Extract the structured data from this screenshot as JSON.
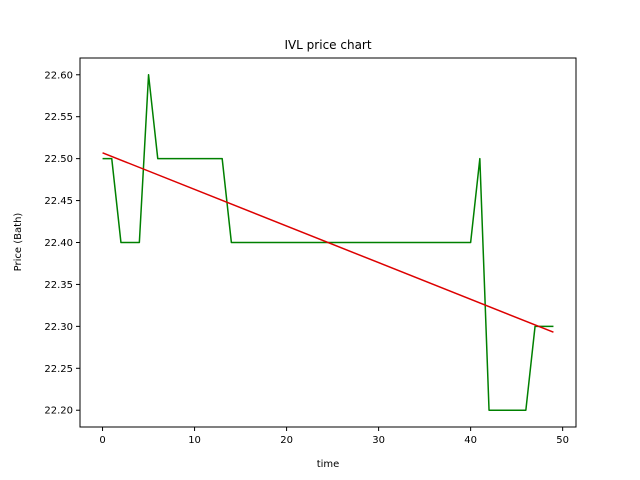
{
  "chart_data": {
    "type": "line",
    "title": "IVL price chart",
    "xlabel": "time",
    "ylabel": "Price (Bath)",
    "xlim": [
      -2.45,
      51.45
    ],
    "ylim": [
      22.18,
      22.62
    ],
    "xticks": [
      0,
      10,
      20,
      30,
      40,
      50
    ],
    "yticks": [
      22.2,
      22.25,
      22.3,
      22.35,
      22.4,
      22.45,
      22.5,
      22.55,
      22.6
    ],
    "grid": false,
    "series": [
      {
        "color": "#008000",
        "x": [
          0,
          1,
          2,
          3,
          4,
          5,
          6,
          7,
          8,
          9,
          10,
          11,
          12,
          13,
          14,
          15,
          16,
          17,
          18,
          19,
          20,
          21,
          22,
          23,
          24,
          25,
          26,
          27,
          28,
          29,
          30,
          31,
          32,
          33,
          34,
          35,
          36,
          37,
          38,
          39,
          40,
          41,
          42,
          43,
          44,
          45,
          46,
          47,
          48,
          49
        ],
        "values": [
          22.5,
          22.5,
          22.4,
          22.4,
          22.4,
          22.6,
          22.5,
          22.5,
          22.5,
          22.5,
          22.5,
          22.5,
          22.5,
          22.5,
          22.4,
          22.4,
          22.4,
          22.4,
          22.4,
          22.4,
          22.4,
          22.4,
          22.4,
          22.4,
          22.4,
          22.4,
          22.4,
          22.4,
          22.4,
          22.4,
          22.4,
          22.4,
          22.4,
          22.4,
          22.4,
          22.4,
          22.4,
          22.4,
          22.4,
          22.4,
          22.4,
          22.5,
          22.2,
          22.2,
          22.2,
          22.2,
          22.2,
          22.3,
          22.3,
          22.3
        ]
      },
      {
        "color": "#dd0000",
        "type": "trendline",
        "x": [
          0,
          49
        ],
        "values": [
          22.507,
          22.293
        ]
      }
    ]
  }
}
